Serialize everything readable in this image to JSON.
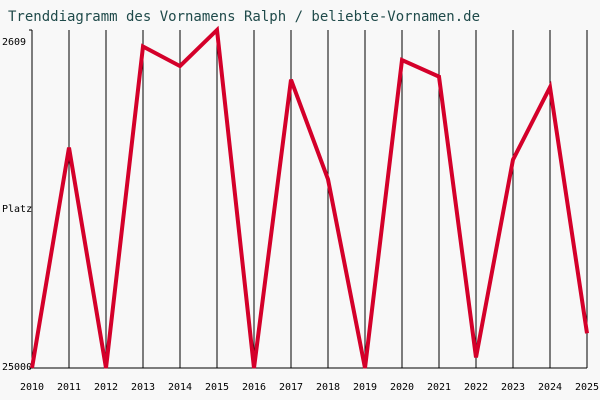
{
  "chart_data": {
    "type": "line",
    "title": "Trenddiagramm des Vornamens Ralph / beliebte-Vornamen.de",
    "ylabel": "Platz",
    "x": [
      2010,
      2011,
      2012,
      2013,
      2014,
      2015,
      2016,
      2017,
      2018,
      2019,
      2020,
      2021,
      2022,
      2023,
      2024,
      2025
    ],
    "values": [
      25000,
      10400,
      25000,
      3700,
      5000,
      2609,
      25000,
      5900,
      12500,
      25000,
      4600,
      5700,
      24300,
      11200,
      6400,
      22700
    ],
    "color": "#d4002a",
    "xlim": [
      2010,
      2025
    ],
    "xticks": [
      2010,
      2011,
      2012,
      2013,
      2014,
      2015,
      2016,
      2017,
      2018,
      2019,
      2020,
      2021,
      2022,
      2023,
      2024,
      2025
    ],
    "ylim": [
      25000,
      2609
    ],
    "yticks": [
      2609,
      25000
    ],
    "grid": true
  }
}
